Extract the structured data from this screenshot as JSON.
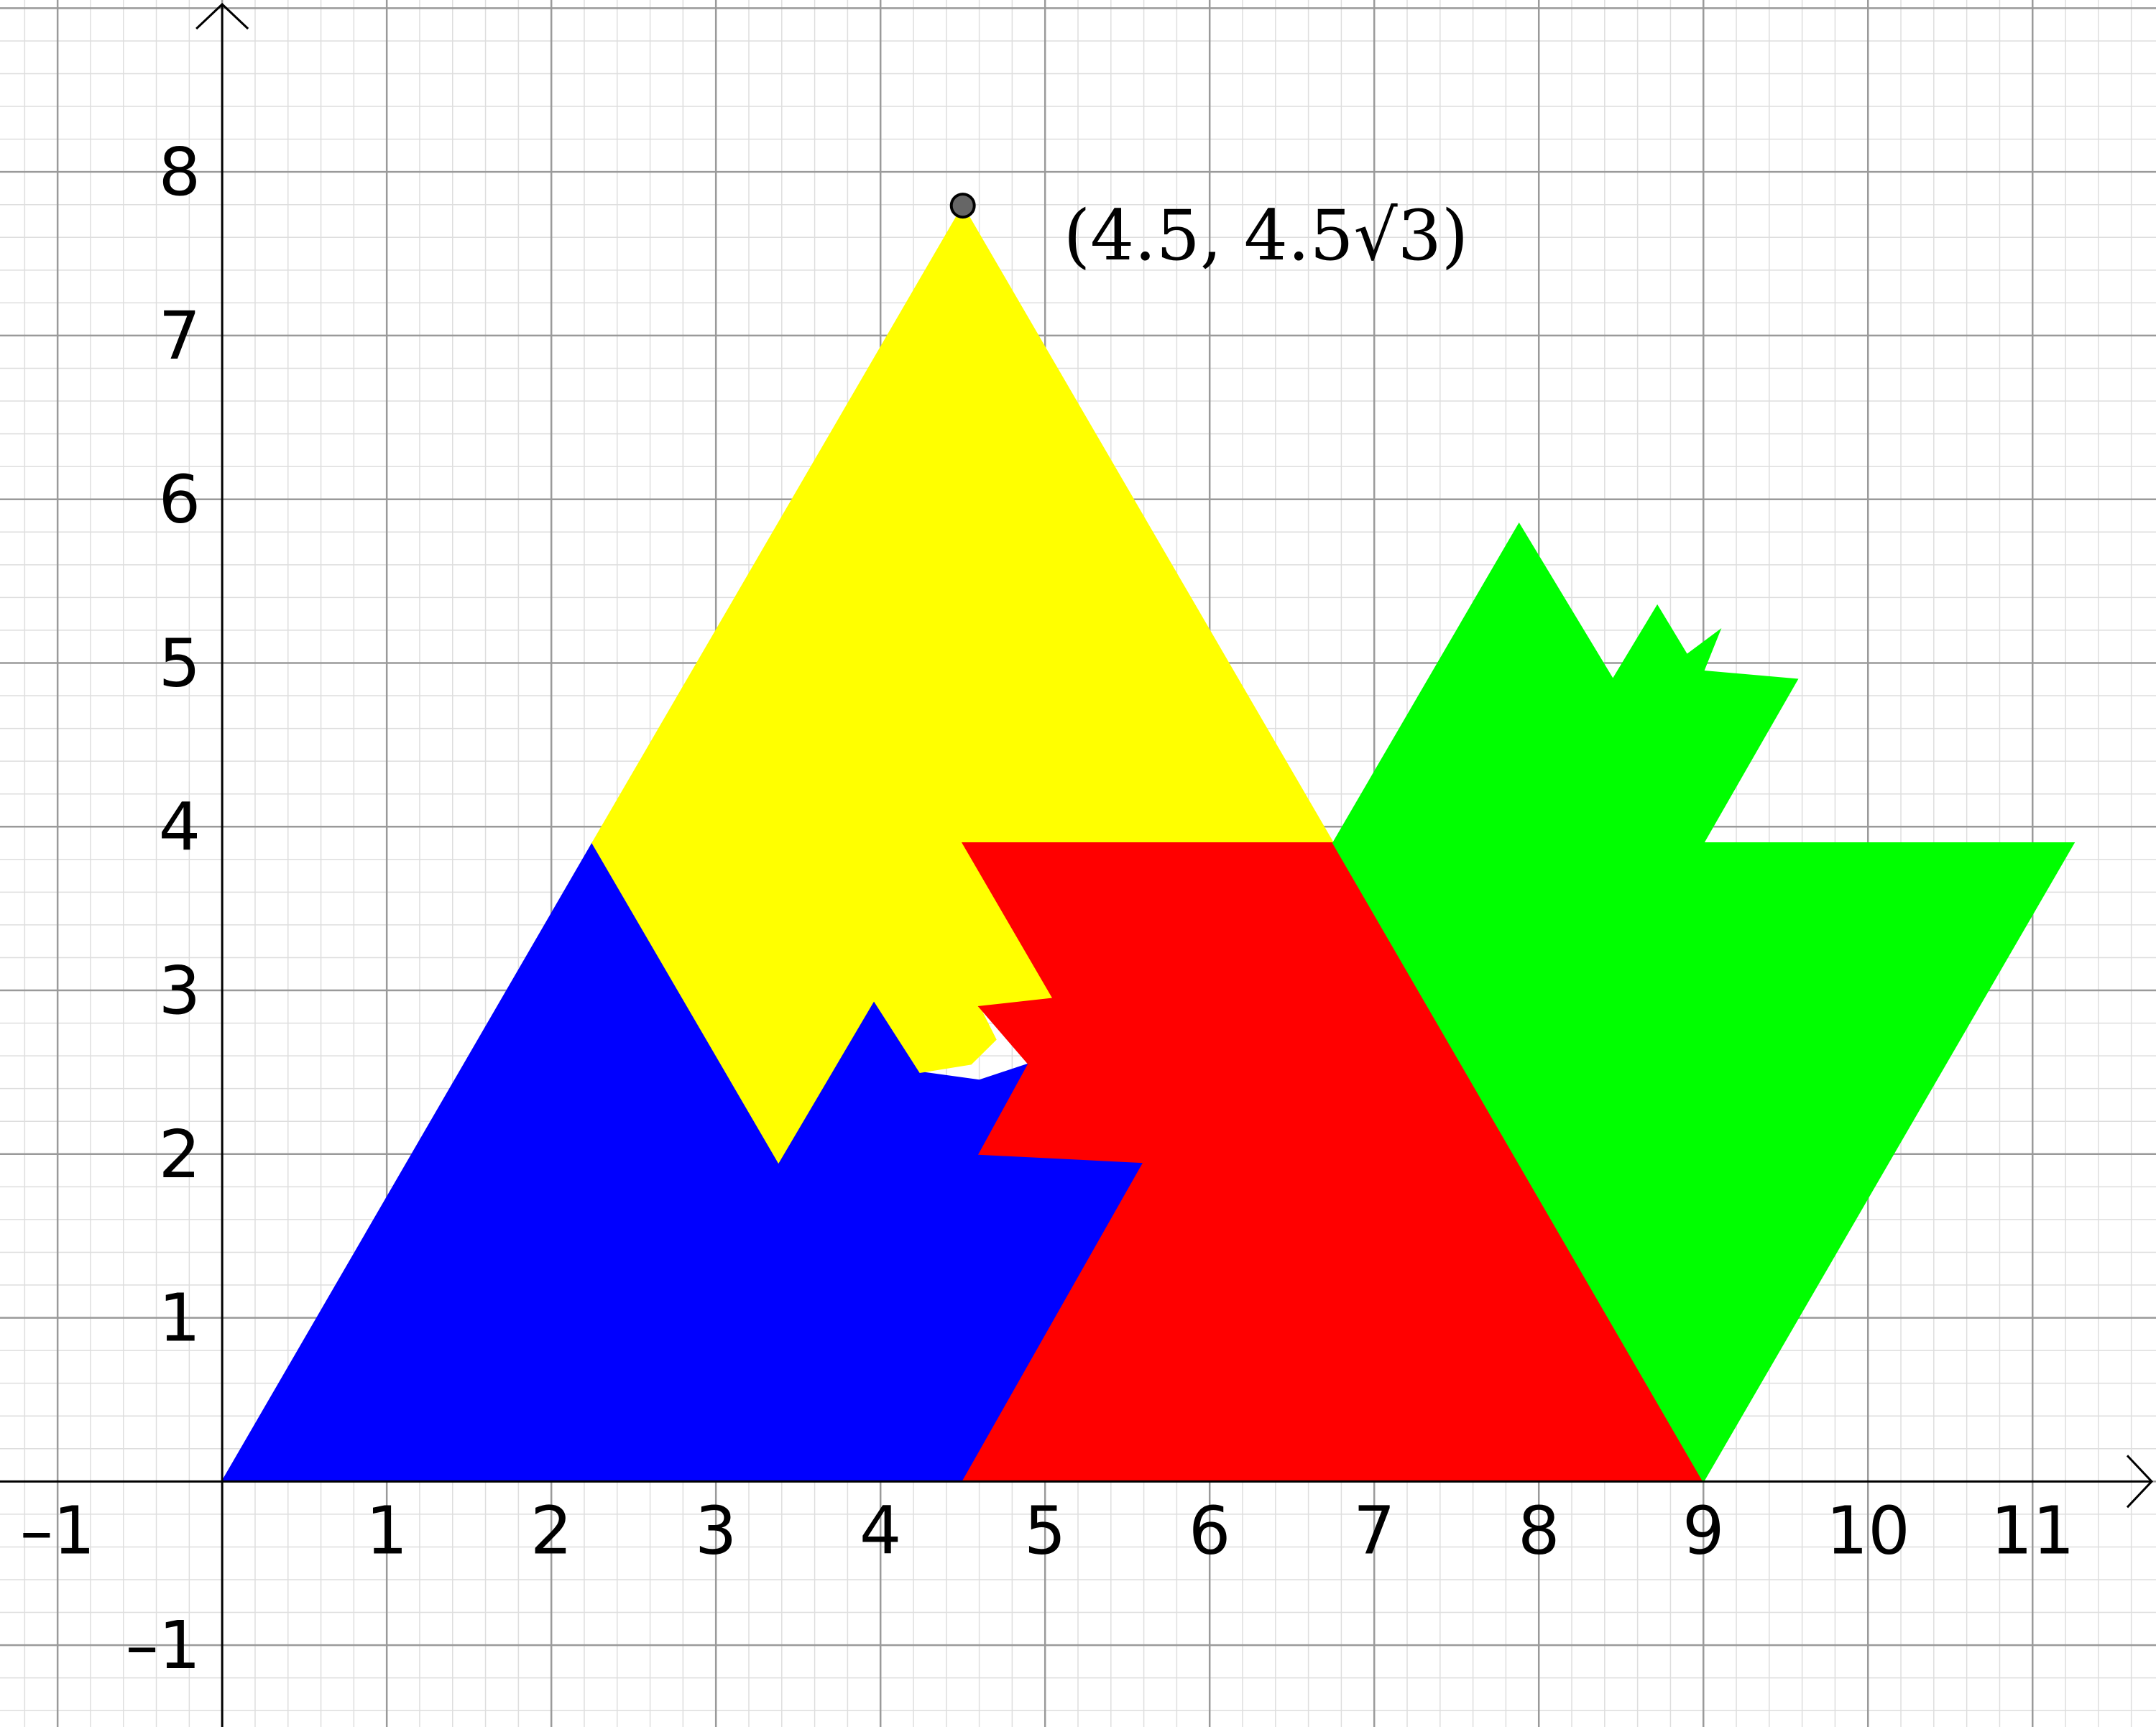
{
  "axes": {
    "x_ticks": [
      "–1",
      "1",
      "2",
      "3",
      "4",
      "5",
      "6",
      "7",
      "8",
      "9",
      "10",
      "11"
    ],
    "x_tick_values": [
      -1,
      1,
      2,
      3,
      4,
      5,
      6,
      7,
      8,
      9,
      10,
      11
    ],
    "y_ticks": [
      "–1",
      "1",
      "2",
      "3",
      "4",
      "5",
      "6",
      "7",
      "8"
    ],
    "y_tick_values": [
      -1,
      1,
      2,
      3,
      4,
      5,
      6,
      7,
      8
    ],
    "x_range": [
      -1.35,
      11.75
    ],
    "y_range": [
      -1.5,
      9.05
    ],
    "grid": true,
    "minor_grid_step": 0.2
  },
  "regions": [
    {
      "color": "#0000FF",
      "name": "blue-region",
      "points": [
        [
          0,
          0
        ],
        [
          2.25,
          3.9
        ],
        [
          3.38,
          1.95
        ],
        [
          3.96,
          2.94
        ],
        [
          4.24,
          2.5
        ],
        [
          4.6,
          2.45
        ],
        [
          4.9,
          2.55
        ],
        [
          4.6,
          2.0
        ],
        [
          5.6,
          1.95
        ],
        [
          4.5,
          0
        ]
      ]
    },
    {
      "color": "#FFFF00",
      "name": "yellow-region",
      "points": [
        [
          2.25,
          3.9
        ],
        [
          4.5,
          7.79
        ],
        [
          6.75,
          3.9
        ],
        [
          4.5,
          3.9
        ],
        [
          5.05,
          2.95
        ],
        [
          4.6,
          2.9
        ],
        [
          4.7,
          2.7
        ],
        [
          4.55,
          2.55
        ],
        [
          4.24,
          2.5
        ],
        [
          3.96,
          2.94
        ],
        [
          3.38,
          1.95
        ]
      ]
    },
    {
      "color": "#FF0000",
      "name": "red-region",
      "points": [
        [
          4.5,
          0
        ],
        [
          9.0,
          0
        ],
        [
          6.75,
          3.9
        ],
        [
          4.5,
          3.9
        ],
        [
          5.05,
          2.95
        ],
        [
          4.6,
          2.9
        ],
        [
          4.9,
          2.55
        ],
        [
          4.6,
          2.0
        ],
        [
          5.6,
          1.95
        ]
      ]
    },
    {
      "color": "#00FF00",
      "name": "green-region",
      "points": [
        [
          6.75,
          3.9
        ],
        [
          7.88,
          5.85
        ],
        [
          8.45,
          4.9
        ],
        [
          8.72,
          5.35
        ],
        [
          8.9,
          5.05
        ],
        [
          9.1,
          5.2
        ],
        [
          9.0,
          4.95
        ],
        [
          9.57,
          4.9
        ],
        [
          9.0,
          3.9
        ],
        [
          11.25,
          3.9
        ],
        [
          9.0,
          0
        ]
      ]
    }
  ],
  "point": {
    "x": 4.5,
    "y": 7.794,
    "label": "(4.5, 4.5√3)",
    "fill": "#666666"
  }
}
